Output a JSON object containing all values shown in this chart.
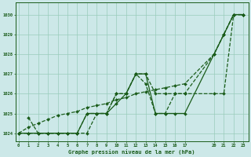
{
  "background_color": "#cce8e8",
  "grid_color": "#99ccbb",
  "line_color": "#1a5c1a",
  "xlabel": "Graphe pression niveau de la mer (hPa)",
  "xlabel_color": "#1a5c1a",
  "ylim": [
    1023.6,
    1030.6
  ],
  "yticks": [
    1024,
    1025,
    1026,
    1027,
    1028,
    1029,
    1030
  ],
  "xticks": [
    0,
    1,
    2,
    3,
    4,
    5,
    6,
    7,
    8,
    9,
    10,
    11,
    12,
    13,
    14,
    15,
    16,
    17,
    20,
    21,
    22,
    23
  ],
  "xlim": [
    -0.3,
    23.5
  ],
  "series": [
    {
      "x": [
        0,
        1,
        2,
        3,
        4,
        5,
        6,
        7,
        8,
        9,
        10,
        11,
        12,
        13,
        14,
        15,
        16,
        17,
        20,
        21,
        22,
        23
      ],
      "y": [
        1024.0,
        1024.3,
        1024.5,
        1024.7,
        1024.9,
        1025.0,
        1025.1,
        1025.3,
        1025.4,
        1025.5,
        1025.7,
        1025.8,
        1026.0,
        1026.1,
        1026.2,
        1026.3,
        1026.4,
        1026.5,
        1028.0,
        1029.0,
        1030.0,
        1030.0
      ],
      "style": "dashed"
    },
    {
      "x": [
        1,
        2,
        3,
        4,
        5,
        6,
        7,
        8,
        9,
        10,
        11,
        12,
        13,
        14,
        15,
        16,
        17,
        20,
        21,
        22,
        23
      ],
      "y": [
        1024.8,
        1024.0,
        1024.0,
        1024.0,
        1024.0,
        1024.0,
        1025.0,
        1025.0,
        1025.0,
        1026.0,
        1026.0,
        1027.0,
        1027.0,
        1026.0,
        1026.0,
        1026.0,
        1026.0,
        1028.0,
        1029.0,
        1030.0,
        1030.0
      ],
      "style": "dashed"
    },
    {
      "x": [
        0,
        1,
        2,
        3,
        4,
        5,
        6,
        7,
        8,
        9,
        10,
        11,
        12,
        13,
        14,
        15,
        16,
        17,
        20,
        21,
        22,
        23
      ],
      "y": [
        1024.0,
        1024.0,
        1024.0,
        1024.0,
        1024.0,
        1024.0,
        1024.0,
        1024.0,
        1025.0,
        1025.0,
        1026.0,
        1026.0,
        1027.0,
        1026.5,
        1025.0,
        1025.0,
        1026.0,
        1026.0,
        1026.0,
        1026.0,
        1030.0,
        1030.0
      ],
      "style": "dashed"
    },
    {
      "x": [
        0,
        1,
        2,
        3,
        4,
        5,
        6,
        7,
        8,
        9,
        10,
        11,
        12,
        13,
        14,
        15,
        16,
        17,
        20,
        21,
        22,
        23
      ],
      "y": [
        1024.0,
        1024.0,
        1024.0,
        1024.0,
        1024.0,
        1024.0,
        1024.0,
        1025.0,
        1025.0,
        1025.0,
        1025.5,
        1026.0,
        1027.0,
        1027.0,
        1025.0,
        1025.0,
        1025.0,
        1025.0,
        1028.0,
        1029.0,
        1030.0,
        1030.0
      ],
      "style": "solid"
    }
  ]
}
